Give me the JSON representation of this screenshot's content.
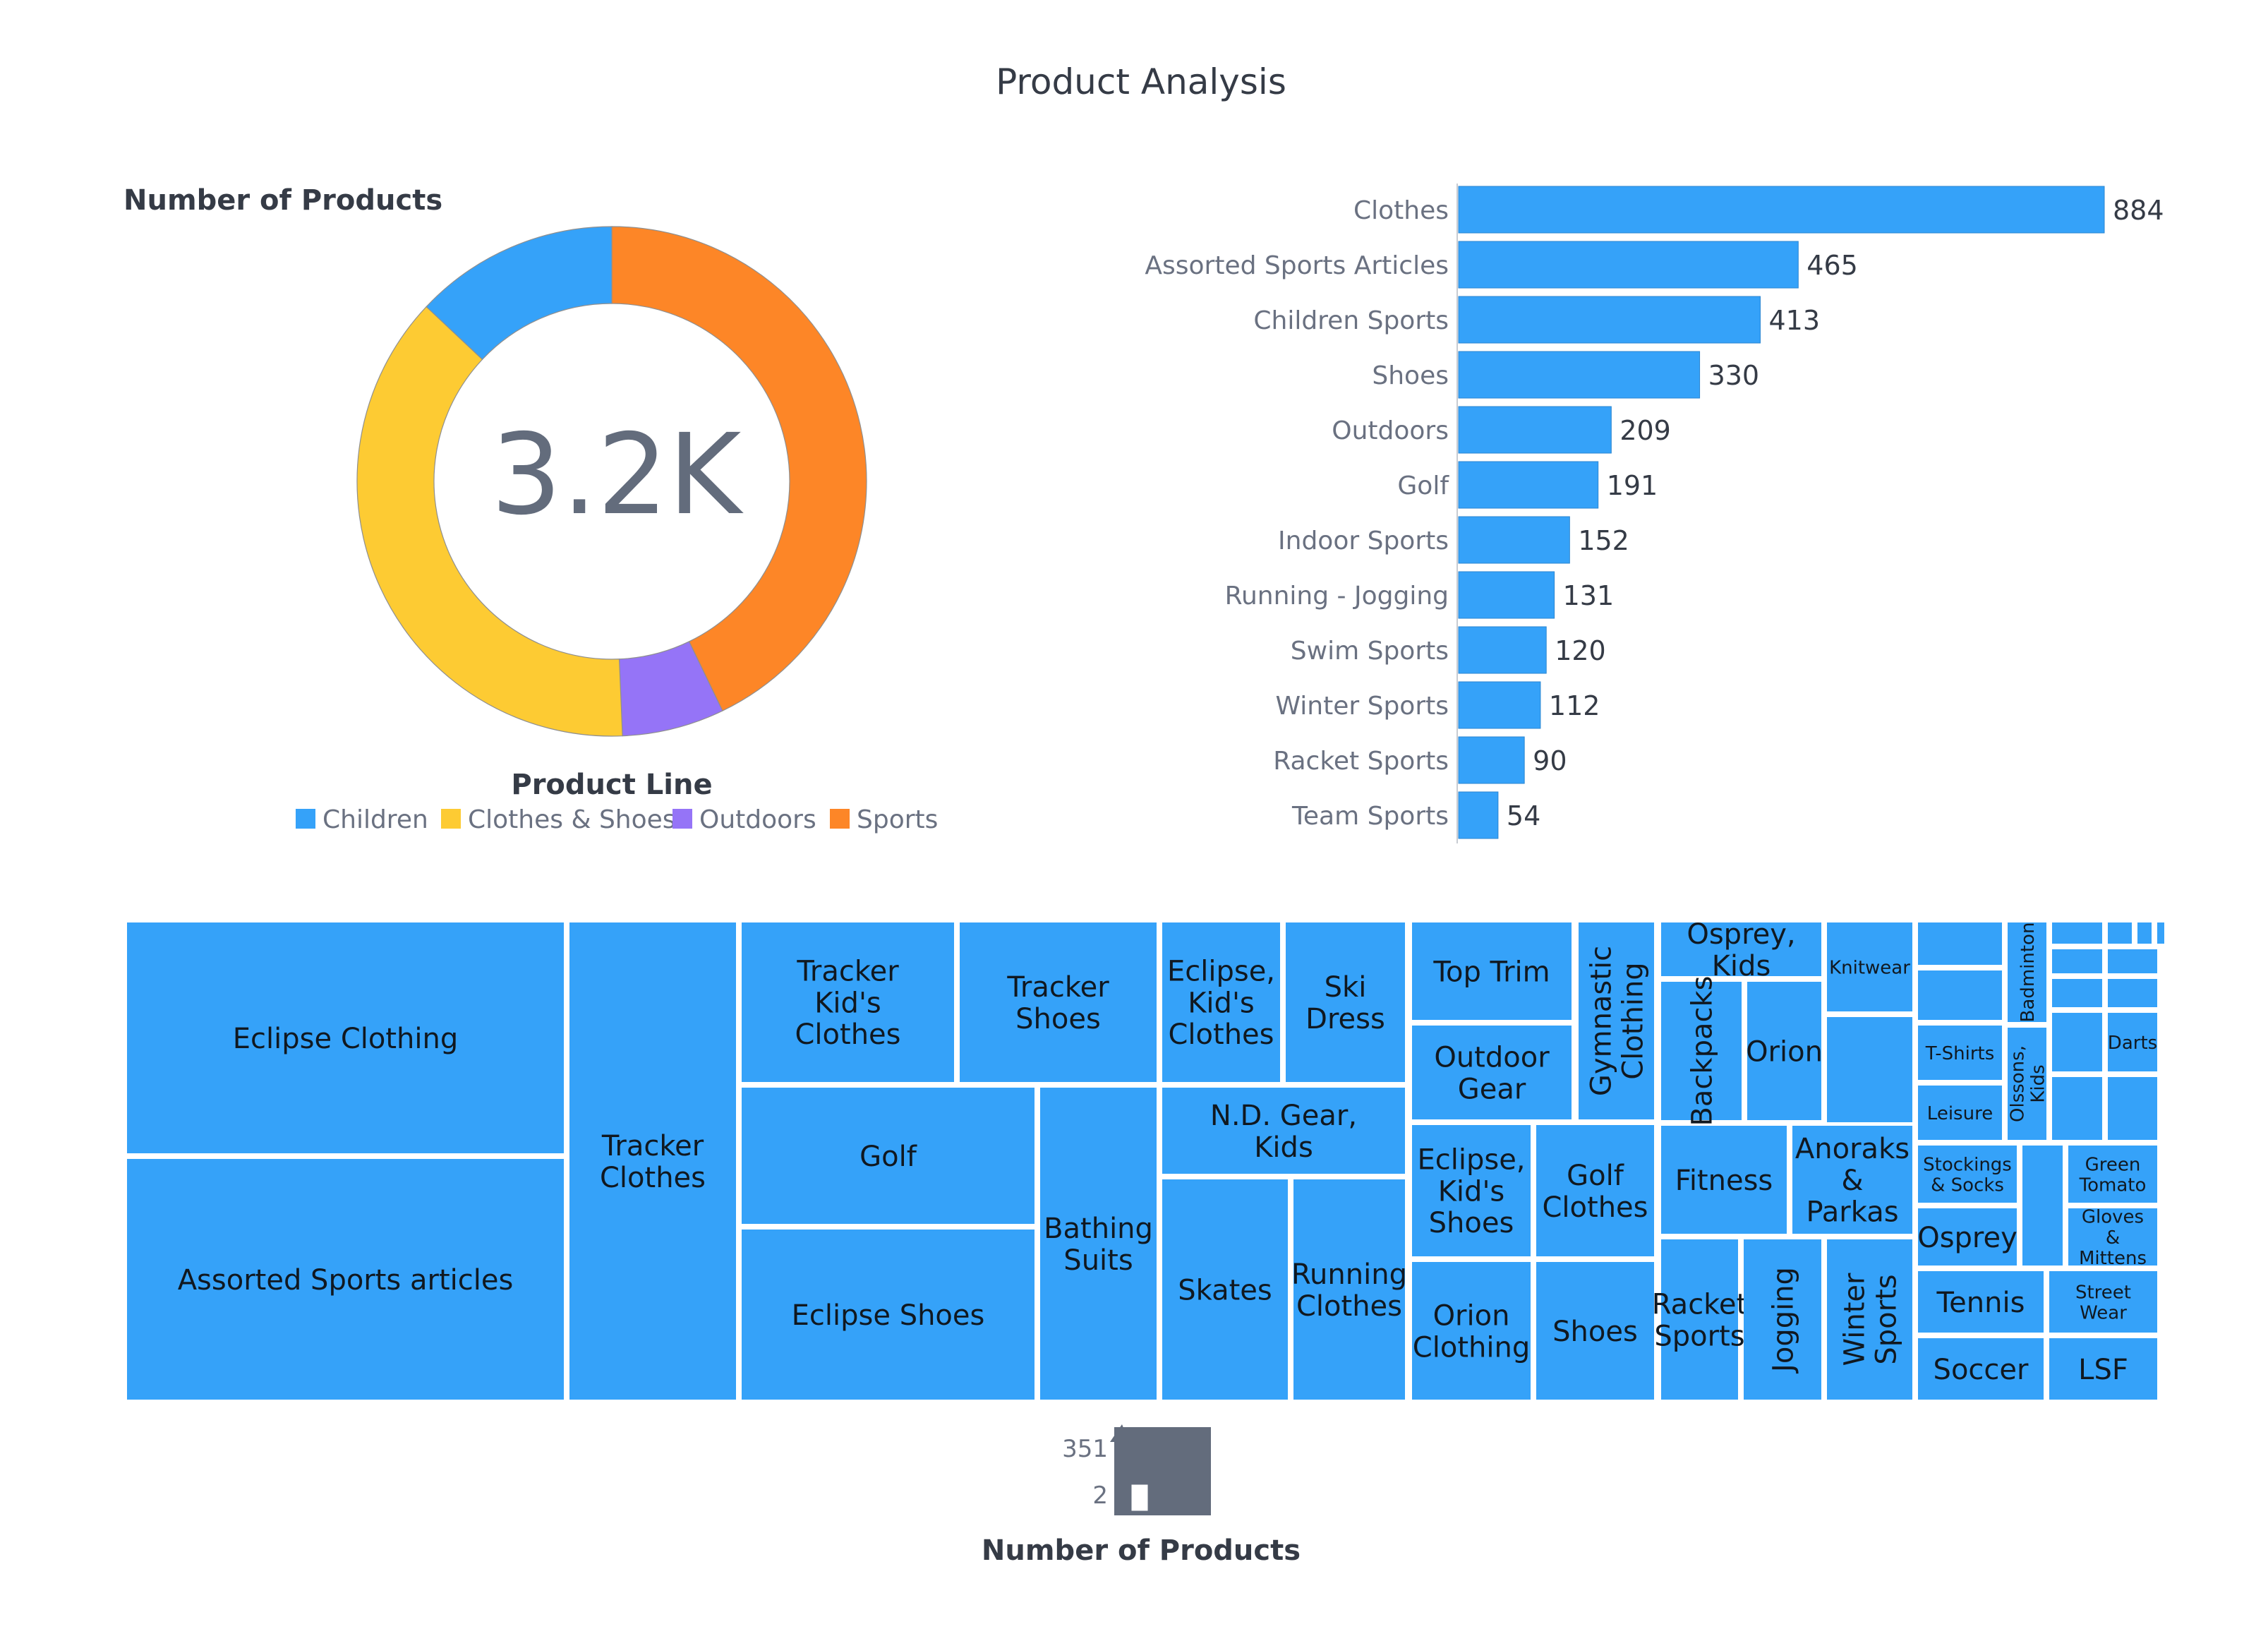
{
  "page_title": "Product Analysis",
  "donut": {
    "title": "Number of Products",
    "center_value": "3.2K",
    "legend_title": "Product Line"
  },
  "size_legend": {
    "title": "Number of Products",
    "max_label": "351",
    "min_label": "2"
  },
  "colors": {
    "bar": "#35a2f9",
    "children": "#35a2f9",
    "clothes_shoes": "#fdcb33",
    "outdoors": "#9574f7",
    "sports": "#fd8627",
    "text": "#353b46",
    "muted": "#6a7181",
    "legend_shape": "#636c7c"
  },
  "chart_data": [
    {
      "type": "pie",
      "title": "Number of Products",
      "legend_title": "Product Line",
      "legend_position": "bottom",
      "categories": [
        "Children",
        "Clothes & Shoes",
        "Outdoors",
        "Sports"
      ],
      "values": [
        418,
        1214,
        209,
        1380
      ],
      "colors": [
        "#35a2f9",
        "#fdcb33",
        "#9574f7",
        "#fd8627"
      ]
    },
    {
      "type": "bar",
      "orientation": "horizontal",
      "categories": [
        "Clothes",
        "Assorted Sports Articles",
        "Children Sports",
        "Shoes",
        "Outdoors",
        "Golf",
        "Indoor Sports",
        "Running - Jogging",
        "Swim Sports",
        "Winter Sports",
        "Racket Sports",
        "Team Sports"
      ],
      "values": [
        884,
        465,
        413,
        330,
        209,
        191,
        152,
        131,
        120,
        112,
        90,
        54
      ]
    },
    {
      "type": "treemap",
      "labels": [
        "Eclipse Clothing",
        "Assorted Sports articles",
        "Tracker Clothes",
        "Tracker Kid's Clothes",
        "Tracker Shoes",
        "Golf",
        "Eclipse Shoes",
        "Bathing Suits",
        "Eclipse, Kid's Clothes",
        "Ski Dress",
        "N.D. Gear, Kids",
        "Skates",
        "Running Clothes",
        "Top Trim",
        "Outdoor Gear",
        "Gymnastic Clothing",
        "Eclipse, Kid's Shoes",
        "Golf Clothes",
        "Orion Clothing",
        "Shoes",
        "Osprey, Kids",
        "Backpacks",
        "Orion",
        "Knitwear",
        "Fitness",
        "Anoraks & Parkas",
        "Racket Sports",
        "Jogging",
        "Winter Sports",
        "T-Shirts",
        "Leisure",
        "Badminton",
        "Olssons, Kids",
        "Darts",
        "Stockings & Socks",
        "Green Tomato",
        "Gloves & Mittens",
        "Osprey",
        "Tennis",
        "Street Wear",
        "Soccer",
        "LSF"
      ],
      "value_range": [
        2,
        351
      ]
    }
  ],
  "treemap": {
    "labels": [
      "Eclipse Clothing",
      "Assorted Sports articles",
      "Tracker Clothes",
      "Tracker Kid's Clothes",
      "Tracker Shoes",
      "Golf",
      "Eclipse Shoes",
      "Bathing Suits",
      "Eclipse, Kid's Clothes",
      "Ski Dress",
      "N.D. Gear, Kids",
      "Skates",
      "Running Clothes",
      "Top Trim",
      "Outdoor Gear",
      "Gymnastic Clothing",
      "Eclipse, Kid's Shoes",
      "Golf Clothes",
      "Orion Clothing",
      "Shoes",
      "Osprey, Kids",
      "Backpacks",
      "Orion",
      "Knitwear",
      "Fitness",
      "Anoraks & Parkas",
      "Racket Sports",
      "Jogging",
      "Winter Sports",
      "T-Shirts",
      "Leisure",
      "Badminton",
      "Olssons, Kids",
      "Darts",
      "Stockings & Socks",
      "Green Tomato",
      "Gloves & Mittens",
      "Osprey",
      "Tennis",
      "Street Wear",
      "Soccer",
      "LSF"
    ]
  }
}
